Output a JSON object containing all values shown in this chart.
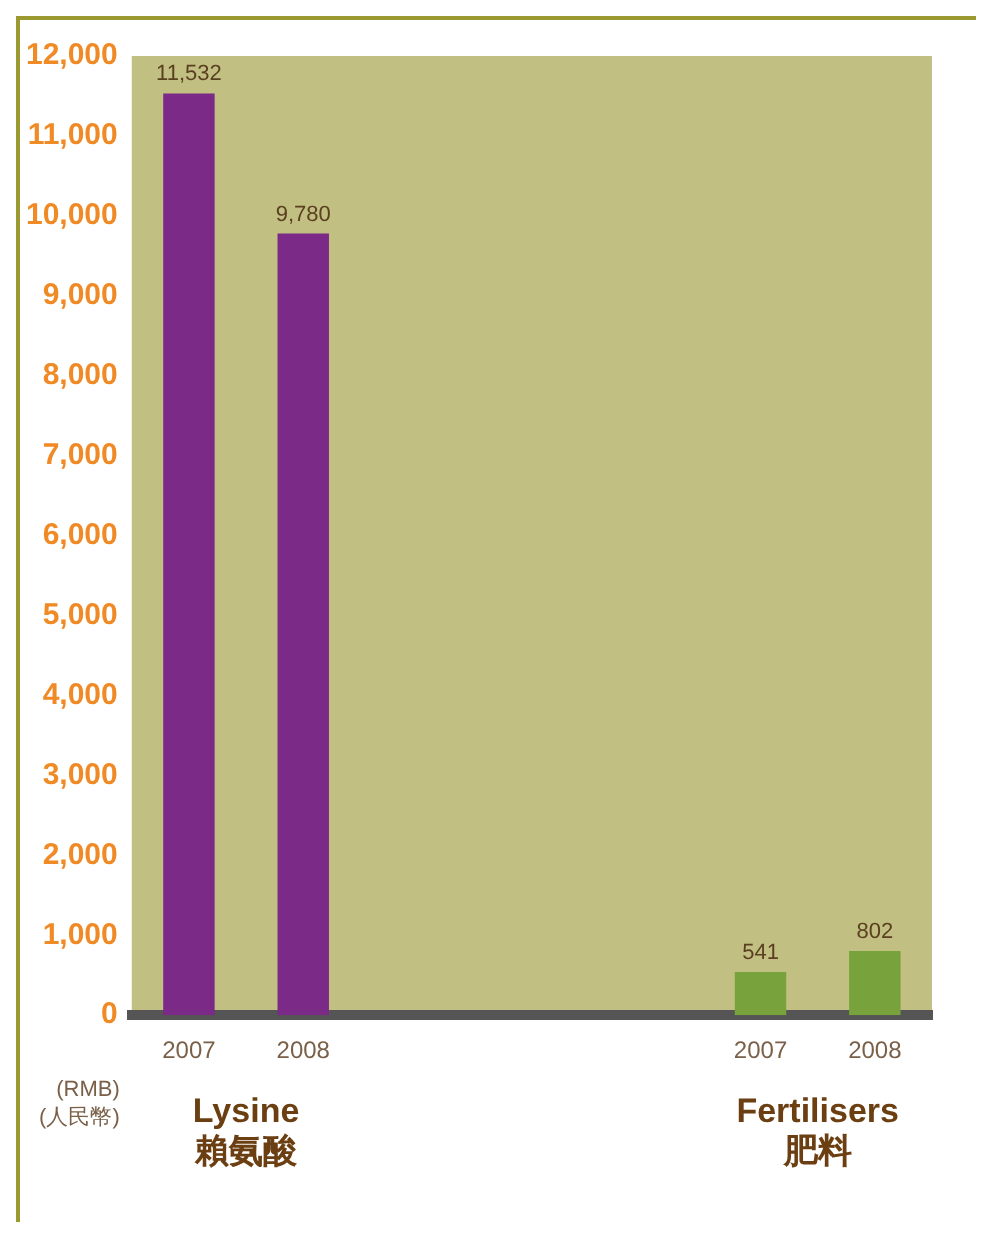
{
  "chart_data": {
    "type": "bar",
    "ylabel": "(RMB)\n(人民幣)",
    "categories": [
      "2007",
      "2008",
      null,
      null,
      null,
      "2007",
      "2008"
    ],
    "values": [
      11532,
      9780,
      null,
      null,
      null,
      541,
      802
    ],
    "colors": [
      "#7b2a87",
      "#7b2a87",
      null,
      null,
      null,
      "#78a23c",
      "#78a23c"
    ],
    "ylim": [
      0,
      12000
    ],
    "yticks": [
      0,
      {
        "value": 1000,
        "label": "1,000"
      },
      {
        "value": 2000,
        "label": "2,000"
      },
      {
        "value": 3000,
        "label": "3,000"
      },
      {
        "value": 4000,
        "label": "4,000"
      },
      {
        "value": 5000,
        "label": "5,000"
      },
      {
        "value": 6000,
        "label": "6,000"
      },
      {
        "value": 7000,
        "label": "7,000"
      },
      {
        "value": 8000,
        "label": "8,000"
      },
      {
        "value": 9000,
        "label": "9,000"
      },
      {
        "value": 10000,
        "label": "10,000"
      },
      {
        "value": 11000,
        "label": "11,000"
      },
      {
        "value": 12000,
        "label": "12,000"
      }
    ],
    "value_labels": [
      "11,532",
      "9,780",
      null,
      null,
      null,
      "541",
      "802"
    ],
    "annotations": [
      "Lysine\n賴氨酸",
      "Fertilisers\n肥料"
    ]
  }
}
